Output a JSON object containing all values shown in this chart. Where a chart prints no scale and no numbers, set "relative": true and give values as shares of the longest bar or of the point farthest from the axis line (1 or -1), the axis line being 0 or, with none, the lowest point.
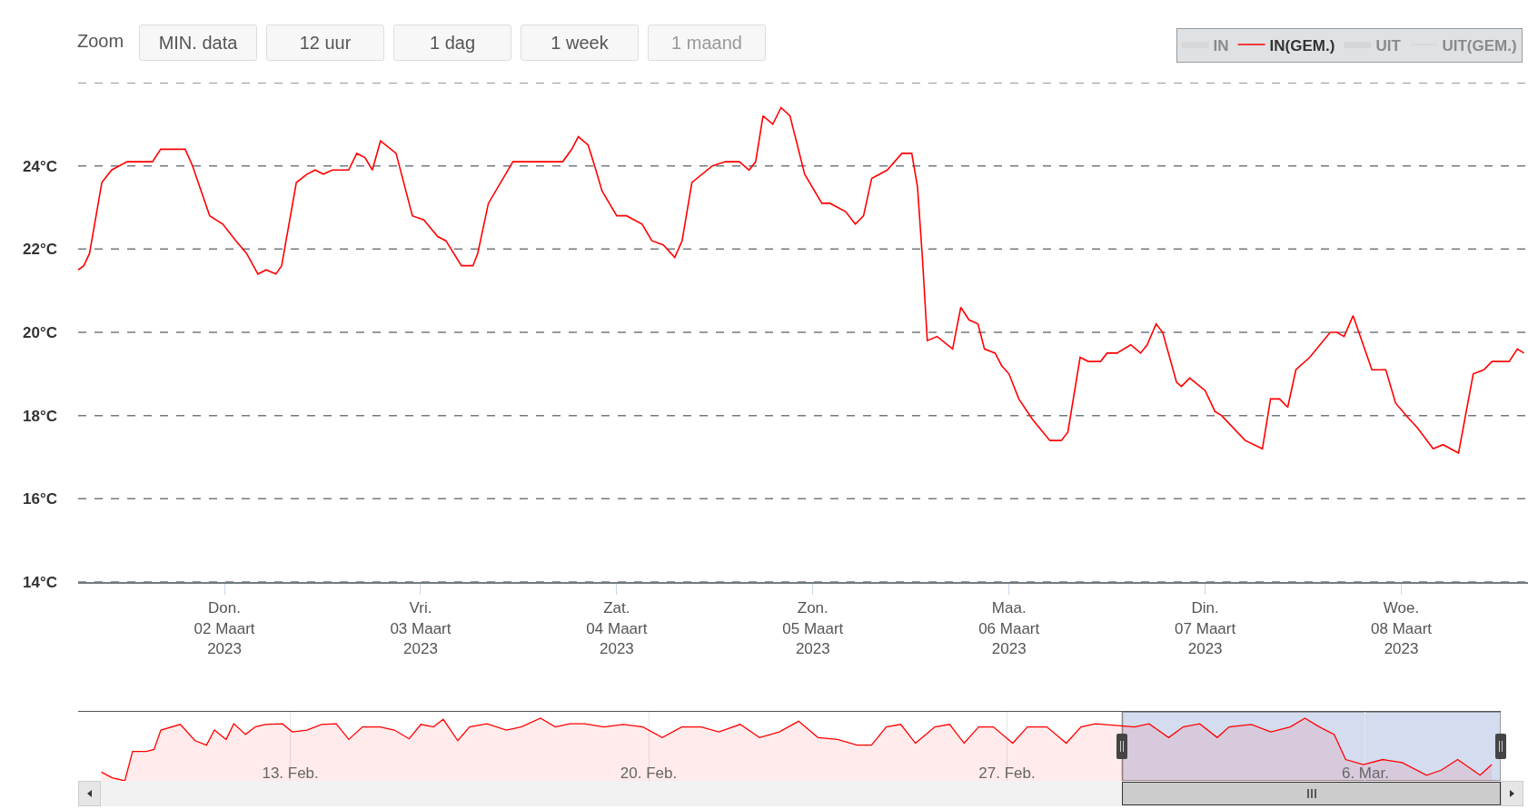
{
  "chart_data": [
    {
      "type": "line",
      "annotations": [
        "Zoom",
        "MIN. data",
        "12 uur",
        "1 dag",
        "1 week",
        "1 maand"
      ],
      "legend": "top right",
      "grid": "y",
      "xlim": [
        "2023-03-01T06:06",
        "2023-03-08T15:30"
      ],
      "xticks": [
        {
          "value": "2023-03-02",
          "label": "Don.\n02 Maart\n2023"
        },
        {
          "value": "2023-03-03",
          "label": "Vri.\n03 Maart\n2023"
        },
        {
          "value": "2023-03-04",
          "label": "Zat.\n04 Maart\n2023"
        },
        {
          "value": "2023-03-05",
          "label": "Zon.\n05 Maart\n2023"
        },
        {
          "value": "2023-03-06",
          "label": "Maa.\n06 Maart\n2023"
        },
        {
          "value": "2023-03-07",
          "label": "Din.\n07 Maart\n2023"
        },
        {
          "value": "2023-03-08",
          "label": "Woe.\n08 Maart\n2023"
        }
      ],
      "ylim": [
        14,
        26
      ],
      "yticks": [
        {
          "value": 14,
          "label": "14°C"
        },
        {
          "value": 16,
          "label": "16°C"
        },
        {
          "value": 18,
          "label": "18°C"
        },
        {
          "value": 20,
          "label": "20°C"
        },
        {
          "value": 22,
          "label": "22°C"
        },
        {
          "value": 24,
          "label": "24°C"
        },
        {
          "value": 26,
          "label": null
        }
      ],
      "series": [
        {
          "name": "IN",
          "type": "area",
          "color": "#cccccc",
          "values": [
            null
          ]
        },
        {
          "name": "IN(GEM.)",
          "color": "#ff0000",
          "x": [
            "2023-03-01T06:06",
            "2023-03-01T06:48",
            "2023-03-01T07:30",
            "2023-03-01T09:00",
            "2023-03-01T10:12",
            "2023-03-01T12:06",
            "2023-03-01T15:12",
            "2023-03-01T16:12",
            "2023-03-01T19:12",
            "2023-03-01T20:06",
            "2023-03-01T22:12",
            "2023-03-01T23:48",
            "2023-03-02T01:24",
            "2023-03-02T02:42",
            "2023-03-02T04:06",
            "2023-03-02T05:06",
            "2023-03-02T06:18",
            "2023-03-02T07:00",
            "2023-03-02T08:48",
            "2023-03-02T10:06",
            "2023-03-02T11:06",
            "2023-03-02T12:06",
            "2023-03-02T13:12",
            "2023-03-02T15:12",
            "2023-03-02T16:12",
            "2023-03-02T17:12",
            "2023-03-02T18:06",
            "2023-03-02T19:06",
            "2023-03-02T21:00",
            "2023-03-02T23:00",
            "2023-03-03T00:24",
            "2023-03-03T02:06",
            "2023-03-03T03:06",
            "2023-03-03T05:00",
            "2023-03-03T06:24",
            "2023-03-03T07:00",
            "2023-03-03T08:18",
            "2023-03-03T11:18",
            "2023-03-03T17:24",
            "2023-03-03T18:30",
            "2023-03-03T19:18",
            "2023-03-03T20:30",
            "2023-03-03T21:18",
            "2023-03-03T22:12",
            "2023-03-04T00:00",
            "2023-03-04T01:12",
            "2023-03-04T03:06",
            "2023-03-04T04:18",
            "2023-03-04T05:42",
            "2023-03-04T07:06",
            "2023-03-04T08:00",
            "2023-03-04T09:12",
            "2023-03-04T11:42",
            "2023-03-04T13:18",
            "2023-03-04T15:00",
            "2023-03-04T16:12",
            "2023-03-04T17:00",
            "2023-03-04T17:54",
            "2023-03-04T19:06",
            "2023-03-04T20:06",
            "2023-03-04T21:12",
            "2023-03-04T23:00",
            "2023-03-05T01:06",
            "2023-03-05T02:06",
            "2023-03-05T04:00",
            "2023-03-05T05:12",
            "2023-03-05T06:12",
            "2023-03-05T07:12",
            "2023-03-05T09:06",
            "2023-03-05T10:54",
            "2023-03-05T12:06",
            "2023-03-05T12:48",
            "2023-03-05T13:24",
            "2023-03-05T14:00",
            "2023-03-05T15:12",
            "2023-03-05T17:06",
            "2023-03-05T18:06",
            "2023-03-05T19:06",
            "2023-03-05T20:12",
            "2023-03-05T21:00",
            "2023-03-05T22:18",
            "2023-03-05T23:06",
            "2023-03-06T00:00",
            "2023-03-06T01:12",
            "2023-03-06T02:54",
            "2023-03-06T05:00",
            "2023-03-06T06:24",
            "2023-03-06T07:12",
            "2023-03-06T08:42",
            "2023-03-06T09:42",
            "2023-03-06T11:12",
            "2023-03-06T12:00",
            "2023-03-06T13:12",
            "2023-03-06T14:54",
            "2023-03-06T16:06",
            "2023-03-06T16:54",
            "2023-03-06T18:00",
            "2023-03-06T18:48",
            "2023-03-06T20:30",
            "2023-03-06T21:06",
            "2023-03-06T22:06",
            "2023-03-07T00:00",
            "2023-03-07T01:12",
            "2023-03-07T02:00",
            "2023-03-07T04:54",
            "2023-03-07T07:00",
            "2023-03-07T08:00",
            "2023-03-07T09:06",
            "2023-03-07T10:06",
            "2023-03-07T11:06",
            "2023-03-07T12:48",
            "2023-03-07T15:18",
            "2023-03-07T16:06",
            "2023-03-07T17:00",
            "2023-03-07T18:06",
            "2023-03-07T20:24",
            "2023-03-07T22:06",
            "2023-03-07T23:18",
            "2023-03-08T00:36",
            "2023-03-08T02:00",
            "2023-03-08T03:54",
            "2023-03-08T05:06",
            "2023-03-08T07:00",
            "2023-03-08T08:48",
            "2023-03-08T10:06",
            "2023-03-08T11:06",
            "2023-03-08T13:12",
            "2023-03-08T14:12",
            "2023-03-08T15:00"
          ],
          "values": [
            21.5,
            21.6,
            21.9,
            23.6,
            23.9,
            24.1,
            24.1,
            24.4,
            24.4,
            24.0,
            22.8,
            22.6,
            22.2,
            21.9,
            21.4,
            21.5,
            21.4,
            21.6,
            23.6,
            23.8,
            23.9,
            23.8,
            23.9,
            23.9,
            24.3,
            24.2,
            23.9,
            24.6,
            24.3,
            22.8,
            22.7,
            22.3,
            22.2,
            21.6,
            21.6,
            21.9,
            23.1,
            24.1,
            24.1,
            24.4,
            24.7,
            24.5,
            24.0,
            23.4,
            22.8,
            22.8,
            22.6,
            22.2,
            22.1,
            21.8,
            22.2,
            23.6,
            24.0,
            24.1,
            24.1,
            23.9,
            24.1,
            25.2,
            25.0,
            25.4,
            25.2,
            23.8,
            23.1,
            23.1,
            22.9,
            22.6,
            22.8,
            23.7,
            23.9,
            24.3,
            24.3,
            23.5,
            21.8,
            19.8,
            19.9,
            19.6,
            20.6,
            20.3,
            20.2,
            19.6,
            19.5,
            19.2,
            19.0,
            18.4,
            17.9,
            17.4,
            17.4,
            17.6,
            19.4,
            19.3,
            19.3,
            19.5,
            19.5,
            19.7,
            19.5,
            19.7,
            20.2,
            20.0,
            18.8,
            18.7,
            18.9,
            18.6,
            18.1,
            18.0,
            17.4,
            17.2,
            18.4,
            18.4,
            18.2,
            19.1,
            19.4,
            20.0,
            20.0,
            19.9,
            20.4,
            19.1,
            19.1,
            18.3,
            18.0,
            17.7,
            17.2,
            17.3,
            17.1,
            19.0,
            19.1,
            19.3,
            19.3,
            19.6,
            19.5
          ]
        },
        {
          "name": "UIT",
          "type": "area",
          "color": "#cccccc",
          "values": [
            null
          ]
        },
        {
          "name": "UIT(GEM.)",
          "type": "line",
          "color": "#cccccc",
          "values": [
            null
          ]
        }
      ]
    },
    {
      "type": "area",
      "relative": true,
      "tick_labels": "x",
      "grid": "x",
      "xlim": [
        "2023-02-08T20:30",
        "2023-03-08T15:30"
      ],
      "xticks": [
        {
          "value": "2023-02-13",
          "label": "13. Feb."
        },
        {
          "value": "2023-02-20",
          "label": "20. Feb."
        },
        {
          "value": "2023-02-27",
          "label": "27. Feb."
        },
        {
          "value": "2023-03-06",
          "label": "6. Mar."
        }
      ],
      "bands": [
        {
          "axis": "x",
          "from": "2023-03-01T06:06",
          "to": "2023-03-08T15:30",
          "color": "#b8c5e6"
        }
      ],
      "series": [
        {
          "color": "#ff0000",
          "x": [
            "2023-02-09T07:24",
            "2023-02-09T12:30",
            "2023-02-09T18:24",
            "2023-02-09T22:00",
            "2023-02-10T04:24",
            "2023-02-10T08:06",
            "2023-02-10T11:18",
            "2023-02-10T20:24",
            "2023-02-11T03:18",
            "2023-02-11T08:42",
            "2023-02-11T12:24",
            "2023-02-11T17:54",
            "2023-02-11T21:30",
            "2023-02-12T03:00",
            "2023-02-12T07:36",
            "2023-02-12T12:06",
            "2023-02-12T20:18",
            "2023-02-13T00:54",
            "2023-02-13T07:48",
            "2023-02-13T14:36",
            "2023-02-13T21:30",
            "2023-02-14T03:24",
            "2023-02-14T09:48",
            "2023-02-14T18:00",
            "2023-02-15T00:48",
            "2023-02-15T07:42",
            "2023-02-15T13:12",
            "2023-02-15T19:06",
            "2023-02-15T23:42",
            "2023-02-16T06:30",
            "2023-02-16T12:00",
            "2023-02-16T20:12",
            "2023-02-17T05:18",
            "2023-02-17T12:12",
            "2023-02-17T21:18",
            "2023-02-18T04:12",
            "2023-02-18T11:00",
            "2023-02-18T17:54",
            "2023-02-19T03:00",
            "2023-02-19T12:06",
            "2023-02-19T21:18",
            "2023-02-20T06:24",
            "2023-02-20T15:30",
            "2023-02-21T00:36",
            "2023-02-21T08:54",
            "2023-02-21T18:54",
            "2023-02-22T04:00",
            "2023-02-22T13:12",
            "2023-02-22T22:18",
            "2023-02-23T07:24",
            "2023-02-23T16:36",
            "2023-02-24T01:42",
            "2023-02-24T08:30",
            "2023-02-24T15:24",
            "2023-02-24T22:12",
            "2023-02-25T05:06",
            "2023-02-25T14:12",
            "2023-02-25T21:06",
            "2023-02-26T03:54",
            "2023-02-26T10:42",
            "2023-02-26T17:36",
            "2023-02-27T02:42",
            "2023-02-27T09:36",
            "2023-02-27T18:42",
            "2023-02-28T03:48",
            "2023-02-28T10:42",
            "2023-02-28T17:30",
            "2023-03-01T11:48",
            "2023-03-01T18:36",
            "2023-03-02T03:48",
            "2023-03-02T10:36",
            "2023-03-02T18:24",
            "2023-03-03T02:36",
            "2023-03-03T08:06",
            "2023-03-03T18:36",
            "2023-03-04T03:42",
            "2023-03-04T12:48",
            "2023-03-04T19:42",
            "2023-03-05T02:30",
            "2023-03-05T09:24",
            "2023-03-05T14:48",
            "2023-03-05T23:06",
            "2023-03-06T08:12",
            "2023-03-06T17:18",
            "2023-03-07T04:42",
            "2023-03-07T11:36",
            "2023-03-07T19:18",
            "2023-03-08T05:48",
            "2023-03-08T11:18"
          ],
          "values": [
            0.14,
            0.05,
            0,
            0.47,
            0.47,
            0.5,
            0.81,
            0.9,
            0.64,
            0.57,
            0.81,
            0.66,
            0.91,
            0.74,
            0.86,
            0.9,
            0.91,
            0.78,
            0.81,
            0.9,
            0.91,
            0.66,
            0.86,
            0.86,
            0.81,
            0.67,
            0.9,
            0.86,
            0.98,
            0.64,
            0.86,
            0.91,
            0.81,
            0.86,
            1,
            0.86,
            0.91,
            0.91,
            0.86,
            0.9,
            0.86,
            0.69,
            0.86,
            0.86,
            0.78,
            0.9,
            0.69,
            0.78,
            0.95,
            0.69,
            0.66,
            0.57,
            0.57,
            0.86,
            0.9,
            0.6,
            0.86,
            0.9,
            0.6,
            0.86,
            0.86,
            0.6,
            0.86,
            0.86,
            0.6,
            0.86,
            0.91,
            0.86,
            0.91,
            0.69,
            0.86,
            0.91,
            0.69,
            0.86,
            0.9,
            0.78,
            0.86,
            1,
            0.86,
            0.74,
            0.34,
            0.26,
            0.34,
            0.29,
            0.09,
            0.17,
            0.34,
            0.09,
            0.26
          ]
        }
      ]
    }
  ]
}
